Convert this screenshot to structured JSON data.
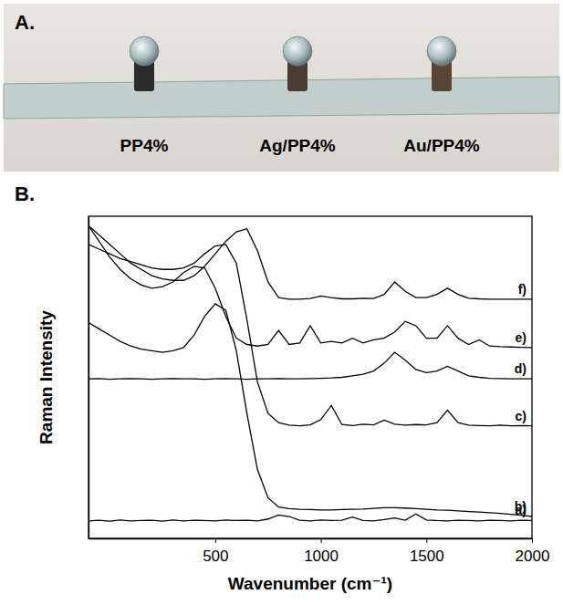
{
  "figure": {
    "panels": [
      {
        "label": "A.",
        "samples": [
          "PP4%",
          "Ag/PP4%",
          "Au/PP4%"
        ]
      },
      {
        "label": "B."
      }
    ]
  },
  "chart_data": {
    "type": "line",
    "x_label": "Wavenumber (cm⁻¹)",
    "y_label": "Raman Intensity",
    "xlim": [
      -100,
      2000
    ],
    "xticks": [
      500,
      1000,
      1500,
      2000
    ],
    "ylim": [
      0,
      103
    ],
    "tick_labels": "x",
    "x": [
      -100,
      -50,
      0,
      50,
      100,
      150,
      200,
      250,
      300,
      350,
      400,
      450,
      500,
      550,
      600,
      650,
      700,
      750,
      800,
      850,
      900,
      950,
      1000,
      1050,
      1100,
      1150,
      1200,
      1250,
      1300,
      1350,
      1400,
      1450,
      1500,
      1550,
      1600,
      1650,
      1700,
      1750,
      1800,
      1850,
      1900,
      1950,
      2000
    ],
    "series": [
      {
        "name": "a)",
        "color": "#000000",
        "values": [
          5.6,
          5.8,
          5.5,
          5.9,
          5.6,
          5.7,
          5.8,
          5.5,
          5.9,
          5.6,
          5.8,
          5.7,
          5.6,
          5.9,
          5.7,
          5.8,
          5.6,
          6.2,
          7.5,
          7.0,
          5.8,
          5.6,
          5.9,
          5.7,
          5.8,
          6.8,
          5.7,
          5.6,
          6.0,
          6.5,
          5.8,
          7.8,
          5.9,
          5.7,
          5.6,
          5.8,
          5.7,
          5.6,
          5.8,
          5.7,
          5.6,
          5.8,
          5.7
        ]
      },
      {
        "name": "b)",
        "color": "#000000",
        "values": [
          69,
          67,
          65,
          63,
          61.5,
          60.5,
          60,
          59.5,
          60,
          61,
          65,
          71,
          75,
          73,
          60,
          40,
          22,
          13,
          10,
          9.5,
          9.3,
          9.2,
          9.1,
          9.1,
          9.2,
          9.3,
          9.4,
          9.6,
          9.8,
          9.8,
          9.7,
          9.5,
          9.3,
          9.1,
          9.0,
          8.8,
          8.6,
          8.4,
          8.2,
          8.0,
          7.7,
          7.4,
          7.0
        ]
      },
      {
        "name": "c)",
        "color": "#000000",
        "values": [
          94,
          92.5,
          91,
          89.5,
          88.5,
          87.5,
          86.5,
          86,
          86,
          86.5,
          88,
          91,
          93.5,
          94,
          88,
          70,
          50,
          40,
          37,
          36.2,
          36,
          36.3,
          38,
          42.5,
          36.4,
          36.1,
          36.5,
          36.3,
          37.8,
          36.5,
          36.2,
          36.4,
          36.3,
          37,
          41,
          37,
          36.2,
          36.1,
          36,
          36.2,
          36,
          36.1,
          36
        ]
      },
      {
        "name": "d)",
        "color": "#000000",
        "values": [
          51,
          51.1,
          50.9,
          51,
          51.1,
          51,
          50.9,
          51,
          51.1,
          51,
          51,
          50.9,
          51,
          51.1,
          51,
          50.9,
          51,
          51,
          51.1,
          51,
          51,
          51.1,
          51.2,
          51.3,
          51.5,
          52,
          52.5,
          53.5,
          56,
          59.5,
          57,
          54,
          53,
          53.5,
          55,
          53.5,
          52,
          51.5,
          51.2,
          51.1,
          51,
          51,
          51
        ]
      },
      {
        "name": "e)",
        "color": "#000000",
        "values": [
          100,
          95,
          90,
          86,
          83,
          81,
          80,
          80.5,
          82,
          85,
          87,
          86.5,
          80,
          71,
          64,
          62,
          61.5,
          62,
          66.5,
          62,
          62.5,
          68,
          62.5,
          63,
          62.5,
          64,
          62.5,
          63.5,
          64,
          66,
          69.4,
          68,
          64,
          64,
          68,
          64,
          62,
          63.5,
          61.5,
          61.3,
          61.2,
          61.1,
          61
        ]
      },
      {
        "name": "f)",
        "color": "#000000",
        "values": [
          100,
          97,
          94,
          91,
          88,
          86,
          84,
          83,
          82.5,
          82.5,
          84,
          87,
          91,
          95,
          98,
          99,
          92,
          82,
          77,
          76.5,
          76.5,
          76.7,
          77.5,
          77,
          76.6,
          76.6,
          76.8,
          76.7,
          78,
          82,
          79,
          77,
          77,
          78,
          80,
          78,
          76.8,
          76.6,
          76.5,
          76.5,
          76.5,
          76.5,
          76.5
        ]
      }
    ]
  }
}
